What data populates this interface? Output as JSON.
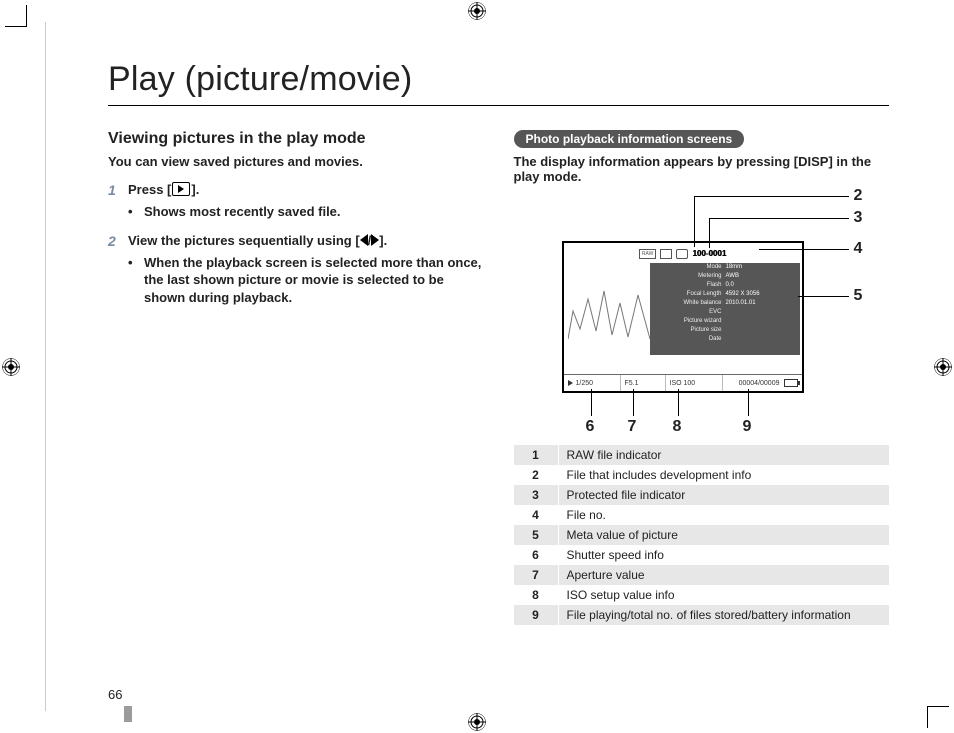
{
  "page_number": "66",
  "title": "Play (picture/movie)",
  "left": {
    "heading": "Viewing pictures in the play mode",
    "intro": "You can view saved pictures and movies.",
    "step1_a": "Press [",
    "step1_b": "].",
    "step1_bul": "Shows most recently saved file.",
    "step2_a": "View the pictures sequentially using [",
    "step2_b": "].",
    "step2_bul": "When the playback screen is selected more than once, the last shown picture or movie is selected to be shown during playback."
  },
  "right": {
    "pill": "Photo playback information screens",
    "intro": "The display information appears by pressing [DISP] in the play mode.",
    "fileno": "100-0001",
    "meta_labels": [
      "Mode",
      "Metering",
      "Flash",
      "Focal Length",
      "White balance",
      "EVC",
      "Picture wizard",
      "Picture size",
      "Date"
    ],
    "meta_values": [
      "",
      "",
      "",
      "18mm",
      "AWB",
      "0.0",
      "",
      "4592  X  3056",
      "2010.01.01"
    ],
    "bottom": {
      "shutter": "1/250",
      "aperture": "F5.1",
      "iso": "ISO  100",
      "count": "00004/00009"
    },
    "callouts_right": [
      "2",
      "3",
      "4",
      "5"
    ],
    "callouts_bottom": [
      "6",
      "7",
      "8",
      "9"
    ],
    "table": [
      [
        "1",
        "RAW file indicator"
      ],
      [
        "2",
        "File that includes development info"
      ],
      [
        "3",
        "Protected file indicator"
      ],
      [
        "4",
        "File no."
      ],
      [
        "5",
        "Meta value of picture"
      ],
      [
        "6",
        "Shutter speed info"
      ],
      [
        "7",
        "Aperture value"
      ],
      [
        "8",
        "ISO setup value info"
      ],
      [
        "9",
        "File playing/total no. of files stored/battery information"
      ]
    ]
  }
}
